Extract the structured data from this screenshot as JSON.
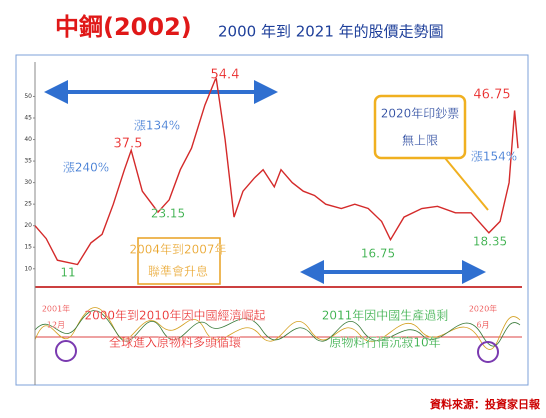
{
  "chart_data": {
    "type": "line",
    "title": "中鋼(2002)",
    "subtitle": "2000 年到 2021 年的股價走勢圖",
    "x": [
      2000.0,
      2000.5,
      2001.0,
      2001.9,
      2002.5,
      2003.0,
      2003.5,
      2004.0,
      2004.3,
      2004.8,
      2005.5,
      2006.0,
      2006.5,
      2007.0,
      2007.6,
      2008.1,
      2008.5,
      2008.9,
      2009.3,
      2009.8,
      2010.2,
      2010.7,
      2011.0,
      2011.5,
      2012.0,
      2012.5,
      2013.0,
      2013.7,
      2014.3,
      2014.9,
      2015.5,
      2015.9,
      2016.5,
      2017.3,
      2018.0,
      2018.8,
      2019.5,
      2020.3,
      2020.8,
      2021.2,
      2021.45,
      2021.6
    ],
    "values": [
      20,
      17,
      12,
      11,
      16,
      18,
      25,
      33,
      37.5,
      28,
      23.15,
      26,
      33,
      38,
      48,
      54.4,
      40,
      22,
      28,
      31,
      33,
      29,
      33,
      30,
      28,
      27,
      25,
      24,
      25,
      24,
      21,
      16.75,
      22,
      24,
      24.5,
      23,
      23,
      18.35,
      21,
      30,
      46.75,
      38
    ],
    "color": "#d42a2a",
    "xlim": [
      2000.0,
      2021.6
    ],
    "ylim": [
      6,
      58
    ],
    "yticks": [
      10,
      15,
      20,
      25,
      30,
      35,
      40,
      45,
      50
    ],
    "annotations": [
      "54.4",
      "37.5",
      "23.15",
      "11",
      "16.75",
      "18.35",
      "46.75",
      "漲240%",
      "漲134%",
      "漲154%",
      "2004年到2007年",
      "聯準會升息",
      "2020年印鈔票",
      "無上限",
      "2000年到2010年因中國經濟崛起",
      "全球進入原物料多頭循環",
      "2011年因中國生產過剩",
      "原物料行情沉寂10年",
      "2001年",
      "12月",
      "2020年",
      "6月"
    ],
    "source": "資料來源：投資家日報"
  }
}
